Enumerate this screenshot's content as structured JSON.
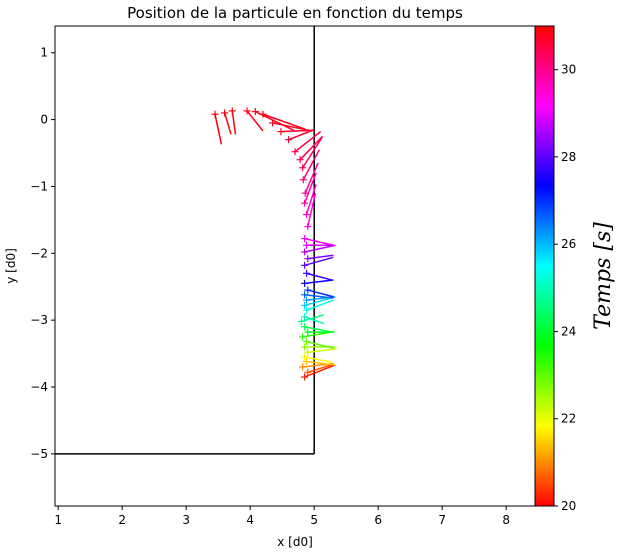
{
  "chart_data": {
    "type": "scatter",
    "title": "Position de la particule en fonction du temps",
    "xlabel": "x [d0]",
    "ylabel": "y [d0]",
    "xlim": [
      0.95,
      8.45
    ],
    "ylim": [
      -5.78,
      1.4
    ],
    "xticks": [
      1,
      2,
      3,
      4,
      5,
      6,
      7,
      8
    ],
    "yticks": [
      1,
      0,
      -1,
      -2,
      -3,
      -4,
      -5
    ],
    "x_tick_labels": [
      "1",
      "2",
      "3",
      "4",
      "5",
      "6",
      "7",
      "8"
    ],
    "y_tick_labels": [
      "1",
      "0",
      "−1",
      "−2",
      "−3",
      "−4",
      "−5"
    ],
    "grid": false,
    "walls": [
      {
        "x": [
          0.95,
          5.0
        ],
        "y": [
          -5.0,
          -5.0
        ],
        "color": "#000000"
      },
      {
        "x": [
          5.0,
          5.0
        ],
        "y": [
          -5.0,
          1.4
        ],
        "color": "#000000"
      }
    ],
    "colorbar": {
      "label": "Temps [s]",
      "range": [
        20,
        31
      ],
      "ticks": [
        20,
        22,
        24,
        26,
        28,
        30
      ],
      "tick_labels": [
        "20",
        "22",
        "24",
        "26",
        "28",
        "30"
      ],
      "colormap": "hsv"
    },
    "points": [
      {
        "x": 4.85,
        "y": -3.85,
        "dx": 0.48,
        "dy": 0.18,
        "t": 20.2
      },
      {
        "x": 4.9,
        "y": -3.78,
        "dx": 0.4,
        "dy": 0.12,
        "t": 20.6
      },
      {
        "x": 4.82,
        "y": -3.7,
        "dx": 0.48,
        "dy": 0.05,
        "t": 21.0
      },
      {
        "x": 4.88,
        "y": -3.62,
        "dx": 0.45,
        "dy": -0.05,
        "t": 21.4
      },
      {
        "x": 4.85,
        "y": -3.55,
        "dx": 0.42,
        "dy": -0.08,
        "t": 21.8
      },
      {
        "x": 4.9,
        "y": -3.48,
        "dx": 0.45,
        "dy": 0.05,
        "t": 22.2
      },
      {
        "x": 4.85,
        "y": -3.4,
        "dx": 0.48,
        "dy": 0.0,
        "t": 22.6
      },
      {
        "x": 4.88,
        "y": -3.32,
        "dx": 0.42,
        "dy": -0.1,
        "t": 23.0
      },
      {
        "x": 4.82,
        "y": -3.25,
        "dx": 0.5,
        "dy": 0.08,
        "t": 23.4
      },
      {
        "x": 4.9,
        "y": -3.18,
        "dx": 0.4,
        "dy": 0.0,
        "t": 23.8
      },
      {
        "x": 4.85,
        "y": -3.1,
        "dx": 0.45,
        "dy": -0.08,
        "t": 24.2
      },
      {
        "x": 4.8,
        "y": -3.02,
        "dx": 0.35,
        "dy": 0.1,
        "t": 24.6
      },
      {
        "x": 4.85,
        "y": -2.95,
        "dx": 0.3,
        "dy": -0.1,
        "t": 25.0
      },
      {
        "x": 4.88,
        "y": -2.85,
        "dx": 0.42,
        "dy": 0.15,
        "t": 25.4
      },
      {
        "x": 4.85,
        "y": -2.78,
        "dx": 0.45,
        "dy": 0.12,
        "t": 25.8
      },
      {
        "x": 4.88,
        "y": -2.7,
        "dx": 0.45,
        "dy": 0.05,
        "t": 26.2
      },
      {
        "x": 4.85,
        "y": -2.62,
        "dx": 0.45,
        "dy": -0.05,
        "t": 26.6
      },
      {
        "x": 4.9,
        "y": -2.55,
        "dx": 0.4,
        "dy": -0.1,
        "t": 27.0
      },
      {
        "x": 4.85,
        "y": -2.45,
        "dx": 0.45,
        "dy": 0.05,
        "t": 27.4
      },
      {
        "x": 4.88,
        "y": -2.3,
        "dx": 0.4,
        "dy": -0.1,
        "t": 27.7
      },
      {
        "x": 4.85,
        "y": -2.18,
        "dx": 0.45,
        "dy": 0.12,
        "t": 28.0
      },
      {
        "x": 4.9,
        "y": -2.08,
        "dx": 0.4,
        "dy": 0.05,
        "t": 28.3
      },
      {
        "x": 4.85,
        "y": -1.98,
        "dx": 0.48,
        "dy": 0.1,
        "t": 28.6
      },
      {
        "x": 4.88,
        "y": -1.88,
        "dx": 0.45,
        "dy": 0.0,
        "t": 28.9
      },
      {
        "x": 4.85,
        "y": -1.78,
        "dx": 0.45,
        "dy": -0.1,
        "t": 29.1
      },
      {
        "x": 4.9,
        "y": -1.6,
        "dx": 0.12,
        "dy": 0.5,
        "t": 29.4
      },
      {
        "x": 4.88,
        "y": -1.42,
        "dx": 0.15,
        "dy": 0.45,
        "t": 29.6
      },
      {
        "x": 4.85,
        "y": -1.25,
        "dx": 0.18,
        "dy": 0.45,
        "t": 29.8
      },
      {
        "x": 4.86,
        "y": -1.1,
        "dx": 0.2,
        "dy": 0.45,
        "t": 30.0
      },
      {
        "x": 4.83,
        "y": -0.9,
        "dx": 0.25,
        "dy": 0.45,
        "t": 30.15
      },
      {
        "x": 4.82,
        "y": -0.72,
        "dx": 0.3,
        "dy": 0.45,
        "t": 30.3
      },
      {
        "x": 4.78,
        "y": -0.6,
        "dx": 0.35,
        "dy": 0.35,
        "t": 30.4
      },
      {
        "x": 4.7,
        "y": -0.48,
        "dx": 0.4,
        "dy": 0.3,
        "t": 30.5
      },
      {
        "x": 4.6,
        "y": -0.3,
        "dx": 0.4,
        "dy": 0.15,
        "t": 30.6
      },
      {
        "x": 4.48,
        "y": -0.18,
        "dx": 0.5,
        "dy": 0.02,
        "t": 30.65
      },
      {
        "x": 4.35,
        "y": -0.05,
        "dx": 0.62,
        "dy": -0.12,
        "t": 30.7
      },
      {
        "x": 4.2,
        "y": 0.08,
        "dx": 0.65,
        "dy": -0.22,
        "t": 30.75
      },
      {
        "x": 4.08,
        "y": 0.12,
        "dx": 0.6,
        "dy": -0.28,
        "t": 30.8
      },
      {
        "x": 3.95,
        "y": 0.13,
        "dx": 0.25,
        "dy": -0.3,
        "t": 30.85
      },
      {
        "x": 3.72,
        "y": 0.13,
        "dx": 0.05,
        "dy": -0.35,
        "t": 30.9
      },
      {
        "x": 3.6,
        "y": 0.1,
        "dx": 0.1,
        "dy": -0.32,
        "t": 30.93
      },
      {
        "x": 3.45,
        "y": 0.08,
        "dx": 0.1,
        "dy": -0.45,
        "t": 30.95
      }
    ]
  }
}
